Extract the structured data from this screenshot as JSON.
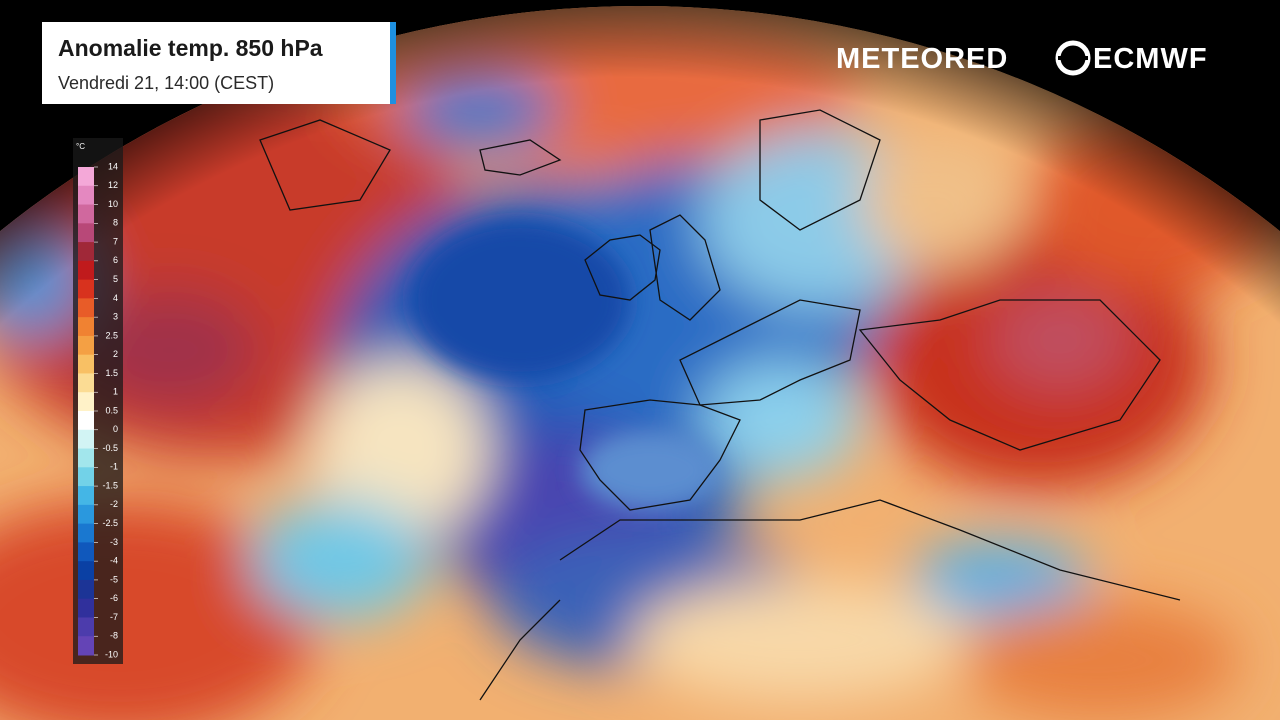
{
  "header": {
    "title": "Anomalie temp. 850 hPa",
    "subtitle": "Vendredi 21, 14:00 (CEST)"
  },
  "logos": {
    "brand": "METEORED",
    "partner": "ECMWF"
  },
  "legend": {
    "unit": "°C",
    "ticks": [
      14,
      12,
      10,
      8,
      7,
      6,
      5,
      4,
      3,
      2.5,
      2,
      1.5,
      1,
      0.5,
      0,
      -0.5,
      -1,
      -1.5,
      -2,
      -2.5,
      -3,
      -4,
      -5,
      -6,
      -7,
      -8,
      -10
    ],
    "colors": [
      "#f4a8d8",
      "#e488c0",
      "#d0689e",
      "#b84878",
      "#a02838",
      "#c01a1c",
      "#d8321e",
      "#e85c28",
      "#f08232",
      "#f4a044",
      "#f8c064",
      "#fbdc94",
      "#fff2c8",
      "#ffffff",
      "#d2f4f4",
      "#a2e6ec",
      "#72d2e8",
      "#44b6e6",
      "#2a98de",
      "#1a78d0",
      "#1058bc",
      "#0a40a4",
      "#1c3496",
      "#30309c",
      "#4c3cac",
      "#6444b6"
    ]
  }
}
